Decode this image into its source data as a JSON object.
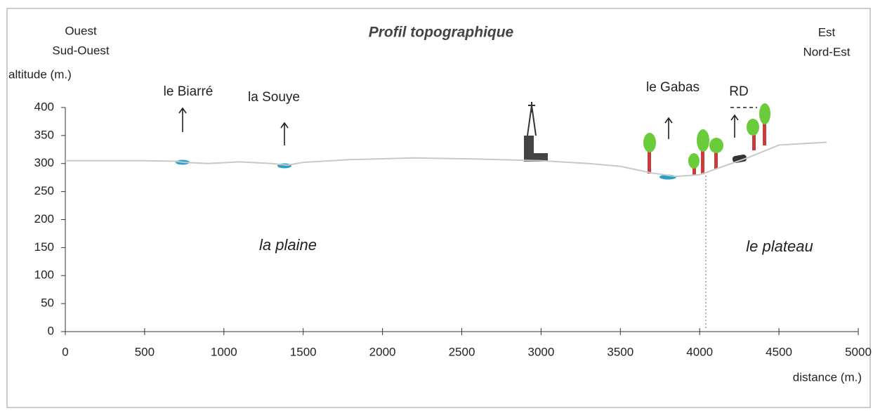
{
  "chart_data": {
    "type": "line",
    "title": "Profil topographique",
    "left_label": [
      "Ouest",
      "Sud-Ouest"
    ],
    "right_label": [
      "Est",
      "Nord-Est"
    ],
    "y_label": "altitude (m.)",
    "x_label": "distance (m.)",
    "x": [
      0,
      500,
      700,
      750,
      900,
      1100,
      1300,
      1400,
      1500,
      1800,
      2200,
      2600,
      3000,
      3300,
      3500,
      3700,
      3850,
      4000,
      4100,
      4300,
      4500,
      4800
    ],
    "series": [
      {
        "color": "#c8c8c8",
        "values": [
          305,
          305,
          304,
          302,
          300,
          303,
          300,
          297,
          302,
          307,
          310,
          308,
          305,
          300,
          295,
          283,
          277,
          280,
          290,
          310,
          333,
          338
        ]
      }
    ],
    "xlim": [
      0,
      5000
    ],
    "xticks": [
      0,
      500,
      1000,
      1500,
      2000,
      2500,
      3000,
      3500,
      4000,
      4500,
      5000
    ],
    "ylim": [
      0,
      400
    ],
    "yticks": [
      0,
      50,
      100,
      150,
      200,
      250,
      300,
      350,
      400
    ],
    "annotations": [
      "le Biarré",
      "la Souye",
      "le Gabas",
      "RD"
    ],
    "regions": [
      "la plaine",
      "le plateau"
    ]
  }
}
